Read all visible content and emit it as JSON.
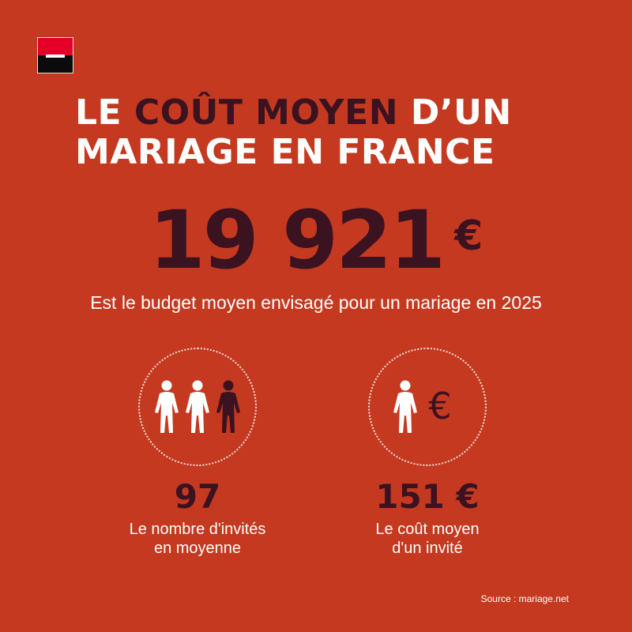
{
  "title": {
    "part1": "LE ",
    "accent": "COÛT MOYEN",
    "part2": " D’UN",
    "line2": "MARIAGE EN FRANCE"
  },
  "headline": {
    "value": "19 921",
    "currency": "€",
    "caption": "Est le budget moyen envisagé pour un mariage en 2025"
  },
  "stats": [
    {
      "icon": "three-people-icon",
      "value": "97",
      "label_line1": "Le nombre d'invités",
      "label_line2": "en moyenne"
    },
    {
      "icon": "person-euro-icon",
      "value": "151 €",
      "label_line1": "Le coût moyen",
      "label_line2": "d'un invité"
    }
  ],
  "source": "Source : mariage.net",
  "colors": {
    "background": "#c4391f",
    "accent": "#3b1220",
    "text": "#ffffff",
    "logo_red": "#e60028",
    "logo_black": "#0b0b0b"
  }
}
